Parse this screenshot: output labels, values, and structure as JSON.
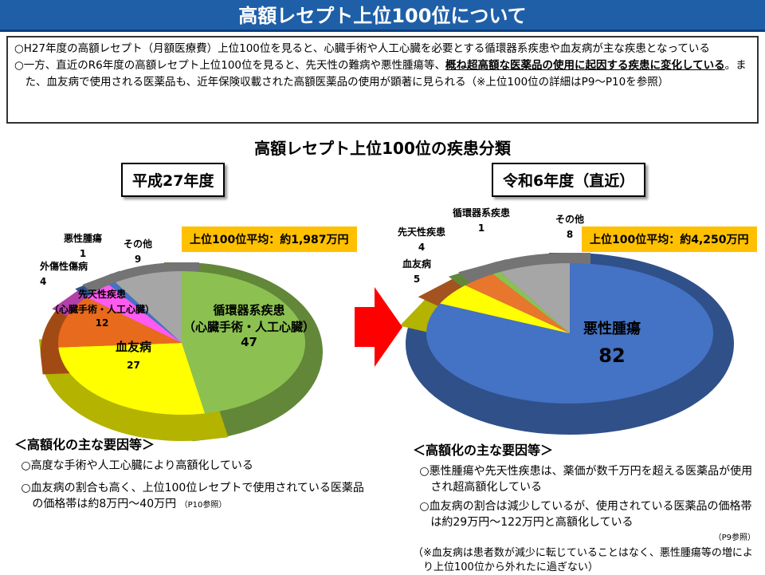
{
  "title": "高額レセプト上位100位について",
  "summary": {
    "p1": "○H27年度の高額レセプト（月額医療費）上位100位を見ると、心臓手術や人工心臓を必要とする循環器系疾患や血友病が主な疾患となっている",
    "p2_a": "○一方、直近のR6年度の高額レセプト上位100位を見ると、先天性の難病や悪性腫瘍等、",
    "p2_b": "概ね超高額な医薬品の使用に起因する疾患に変化している",
    "p2_c": "。また、血友病で使用される医薬品も、近年保険収載された高額医薬品の使用が顕著に見られる（※上位100位の詳細はP9～P10を参照）"
  },
  "chart_title": "高額レセプト上位100位の疾患分類",
  "chart_data": [
    {
      "type": "pie",
      "title": "平成27年度",
      "average": "上位100位平均：約1,987万円",
      "categories": [
        "循環器系疾患（心臓手術・人工心臓）",
        "血友病",
        "先天性疾患（心臓手術・人工心臓）",
        "外傷性傷病",
        "悪性腫瘍",
        "その他"
      ],
      "values": [
        47,
        27,
        12,
        4,
        1,
        9
      ],
      "colors": [
        "#8cc152",
        "#ffff00",
        "#e86a1c",
        "#ff5bf0",
        "#4472c4",
        "#a6a6a6"
      ]
    },
    {
      "type": "pie",
      "title": "令和6年度（直近）",
      "average": "上位100位平均：約4,250万円",
      "categories": [
        "悪性腫瘍",
        "血友病",
        "先天性疾患",
        "循環器系疾患",
        "その他"
      ],
      "values": [
        82,
        5,
        4,
        1,
        8
      ],
      "colors": [
        "#4472c4",
        "#ffff00",
        "#e8762c",
        "#8cc152",
        "#a6a6a6"
      ]
    }
  ],
  "left_labels": {
    "c0a": "循環器系疾患",
    "c0b": "（心臓手術・人工心臓）",
    "c1": "血友病",
    "c2a": "先天性疾患",
    "c2b": "（心臓手術・人工心臓）",
    "c3": "外傷性傷病",
    "c4": "悪性腫瘍",
    "c5": "その他"
  },
  "right_labels": {
    "c0": "悪性腫瘍",
    "c1": "血友病",
    "c2": "先天性疾患",
    "c3": "循環器系疾患",
    "c4": "その他"
  },
  "left_factors": {
    "heading": "＜高額化の主な要因等＞",
    "items": [
      "○高度な手術や人工心臓により高額化している",
      "○血友病の割合も高く、上位100位レセプトで使用されている医薬品の価格帯は約8万円～40万円"
    ],
    "ref": "（P10参照）"
  },
  "right_factors": {
    "heading": "＜高額化の主な要因等＞",
    "items": [
      "○悪性腫瘍や先天性疾患は、薬価が数千万円を超える医薬品が使用され超高額化している",
      "○血友病の割合は減少しているが、使用されている医薬品の価格帯は約29万円～122万円と高額化している"
    ],
    "ref": "（P9参照）",
    "note": "（※血友病は患者数が減少に転じていることはなく、悪性腫瘍等の増により上位100位から外れたに過ぎない）"
  }
}
